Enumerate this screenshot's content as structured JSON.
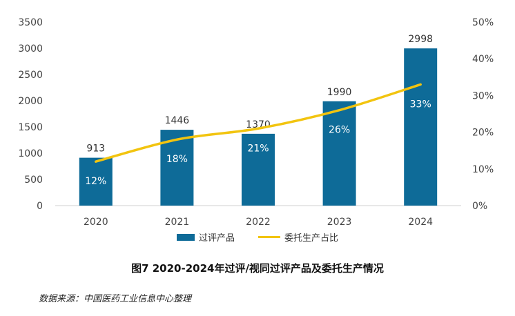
{
  "chart_data": {
    "type": "bar",
    "categories": [
      "2020",
      "2021",
      "2022",
      "2023",
      "2024"
    ],
    "series": [
      {
        "name": "过评产品",
        "type": "bar",
        "axis": "left",
        "values": [
          913,
          1446,
          1370,
          1990,
          2998
        ],
        "labels": [
          "913",
          "1446",
          "1370",
          "1990",
          "2998"
        ]
      },
      {
        "name": "委托生产占比",
        "type": "line",
        "axis": "right",
        "values": [
          12,
          18,
          21,
          26,
          33
        ],
        "labels": [
          "12%",
          "18%",
          "21%",
          "26%",
          "33%"
        ]
      }
    ],
    "left_axis": {
      "min": 0,
      "max": 3500,
      "ticks": [
        "0",
        "500",
        "1000",
        "1500",
        "2000",
        "2500",
        "3000",
        "3500"
      ]
    },
    "right_axis": {
      "min": 0,
      "max": 50,
      "ticks": [
        "0%",
        "10%",
        "20%",
        "30%",
        "40%",
        "50%"
      ]
    },
    "legend_position": "bottom"
  },
  "colors": {
    "bar": "#0e6b98",
    "line": "#f2c40f",
    "axis_text": "#444444",
    "bar_label": "#ffffff"
  },
  "caption": "图7 2020-2024年过评/视同过评产品及委托生产情况",
  "source": "数据来源：中国医药工业信息中心整理"
}
